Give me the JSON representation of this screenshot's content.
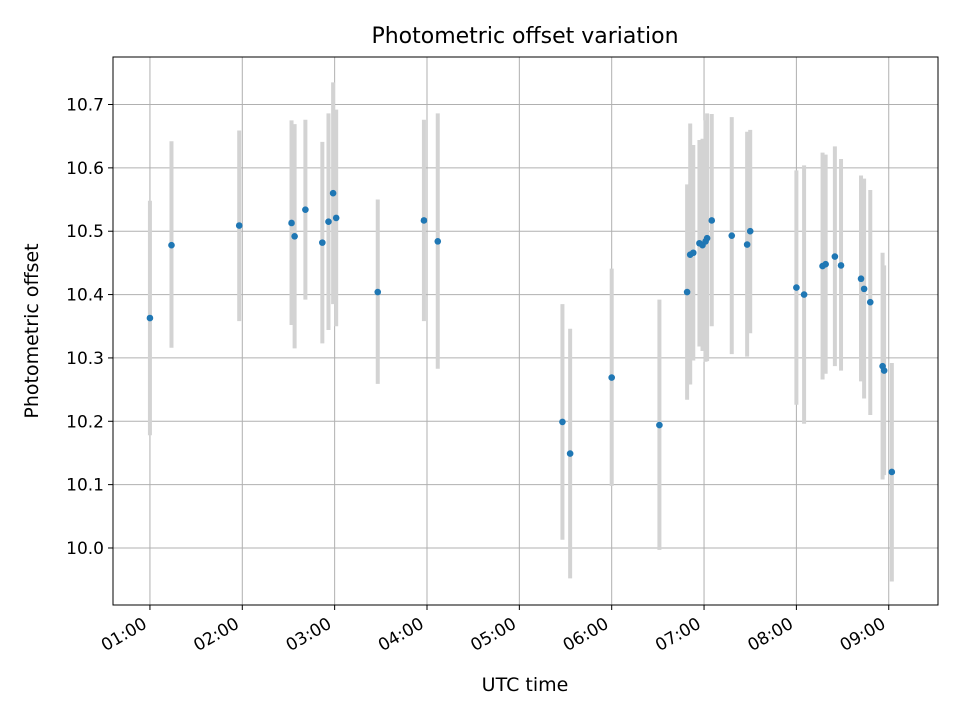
{
  "chart_data": {
    "type": "scatter",
    "title": "Photometric offset variation",
    "xlabel": "UTC time",
    "ylabel": "Photometric offset",
    "xlim": [
      "00:36",
      "09:32"
    ],
    "ylim": [
      9.91,
      10.775
    ],
    "grid": true,
    "xticks": [
      "01:00",
      "02:00",
      "03:00",
      "04:00",
      "05:00",
      "06:00",
      "07:00",
      "08:00",
      "09:00"
    ],
    "yticks": [
      "10.0",
      "10.1",
      "10.2",
      "10.3",
      "10.4",
      "10.5",
      "10.6",
      "10.7"
    ],
    "marker_color": "#1f77b4",
    "errorbar_color": "#d3d3d3",
    "series": [
      {
        "points": [
          {
            "x": "01:00",
            "y": 10.363,
            "low": 10.178,
            "high": 10.548
          },
          {
            "x": "01:14",
            "y": 10.478,
            "low": 10.316,
            "high": 10.642
          },
          {
            "x": "01:58",
            "y": 10.509,
            "low": 10.358,
            "high": 10.659
          },
          {
            "x": "02:32",
            "y": 10.513,
            "low": 10.352,
            "high": 10.675
          },
          {
            "x": "02:34",
            "y": 10.492,
            "low": 10.315,
            "high": 10.669
          },
          {
            "x": "02:41",
            "y": 10.534,
            "low": 10.392,
            "high": 10.676
          },
          {
            "x": "02:52",
            "y": 10.482,
            "low": 10.323,
            "high": 10.641
          },
          {
            "x": "02:56",
            "y": 10.515,
            "low": 10.344,
            "high": 10.686
          },
          {
            "x": "02:59",
            "y": 10.56,
            "low": 10.385,
            "high": 10.735
          },
          {
            "x": "03:01",
            "y": 10.521,
            "low": 10.35,
            "high": 10.692
          },
          {
            "x": "03:28",
            "y": 10.404,
            "low": 10.259,
            "high": 10.55
          },
          {
            "x": "03:58",
            "y": 10.517,
            "low": 10.358,
            "high": 10.676
          },
          {
            "x": "04:07",
            "y": 10.484,
            "low": 10.283,
            "high": 10.686
          },
          {
            "x": "05:28",
            "y": 10.199,
            "low": 10.013,
            "high": 10.385
          },
          {
            "x": "05:33",
            "y": 10.149,
            "low": 9.952,
            "high": 10.346
          },
          {
            "x": "06:00",
            "y": 10.269,
            "low": 10.098,
            "high": 10.441
          },
          {
            "x": "06:31",
            "y": 10.194,
            "low": 9.997,
            "high": 10.392
          },
          {
            "x": "06:49",
            "y": 10.404,
            "low": 10.234,
            "high": 10.574
          },
          {
            "x": "06:51",
            "y": 10.463,
            "low": 10.258,
            "high": 10.67
          },
          {
            "x": "06:53",
            "y": 10.466,
            "low": 10.296,
            "high": 10.636
          },
          {
            "x": "06:57",
            "y": 10.481,
            "low": 10.318,
            "high": 10.644
          },
          {
            "x": "06:59",
            "y": 10.478,
            "low": 10.311,
            "high": 10.646
          },
          {
            "x": "07:01",
            "y": 10.484,
            "low": 10.294,
            "high": 10.675
          },
          {
            "x": "07:02",
            "y": 10.489,
            "low": 10.295,
            "high": 10.686
          },
          {
            "x": "07:05",
            "y": 10.517,
            "low": 10.35,
            "high": 10.685
          },
          {
            "x": "07:18",
            "y": 10.493,
            "low": 10.306,
            "high": 10.68
          },
          {
            "x": "07:28",
            "y": 10.479,
            "low": 10.302,
            "high": 10.657
          },
          {
            "x": "07:30",
            "y": 10.5,
            "low": 10.339,
            "high": 10.66
          },
          {
            "x": "08:00",
            "y": 10.411,
            "low": 10.226,
            "high": 10.596
          },
          {
            "x": "08:05",
            "y": 10.4,
            "low": 10.196,
            "high": 10.604
          },
          {
            "x": "08:17",
            "y": 10.445,
            "low": 10.266,
            "high": 10.624
          },
          {
            "x": "08:19",
            "y": 10.448,
            "low": 10.275,
            "high": 10.621
          },
          {
            "x": "08:25",
            "y": 10.46,
            "low": 10.287,
            "high": 10.634
          },
          {
            "x": "08:29",
            "y": 10.446,
            "low": 10.28,
            "high": 10.614
          },
          {
            "x": "08:42",
            "y": 10.425,
            "low": 10.263,
            "high": 10.588
          },
          {
            "x": "08:44",
            "y": 10.409,
            "low": 10.236,
            "high": 10.583
          },
          {
            "x": "08:48",
            "y": 10.388,
            "low": 10.21,
            "high": 10.565
          },
          {
            "x": "08:56",
            "y": 10.287,
            "low": 10.108,
            "high": 10.466
          },
          {
            "x": "08:57",
            "y": 10.28,
            "low": 10.115,
            "high": 10.446
          },
          {
            "x": "09:02",
            "y": 10.12,
            "low": 9.947,
            "high": 10.292
          }
        ]
      }
    ]
  }
}
